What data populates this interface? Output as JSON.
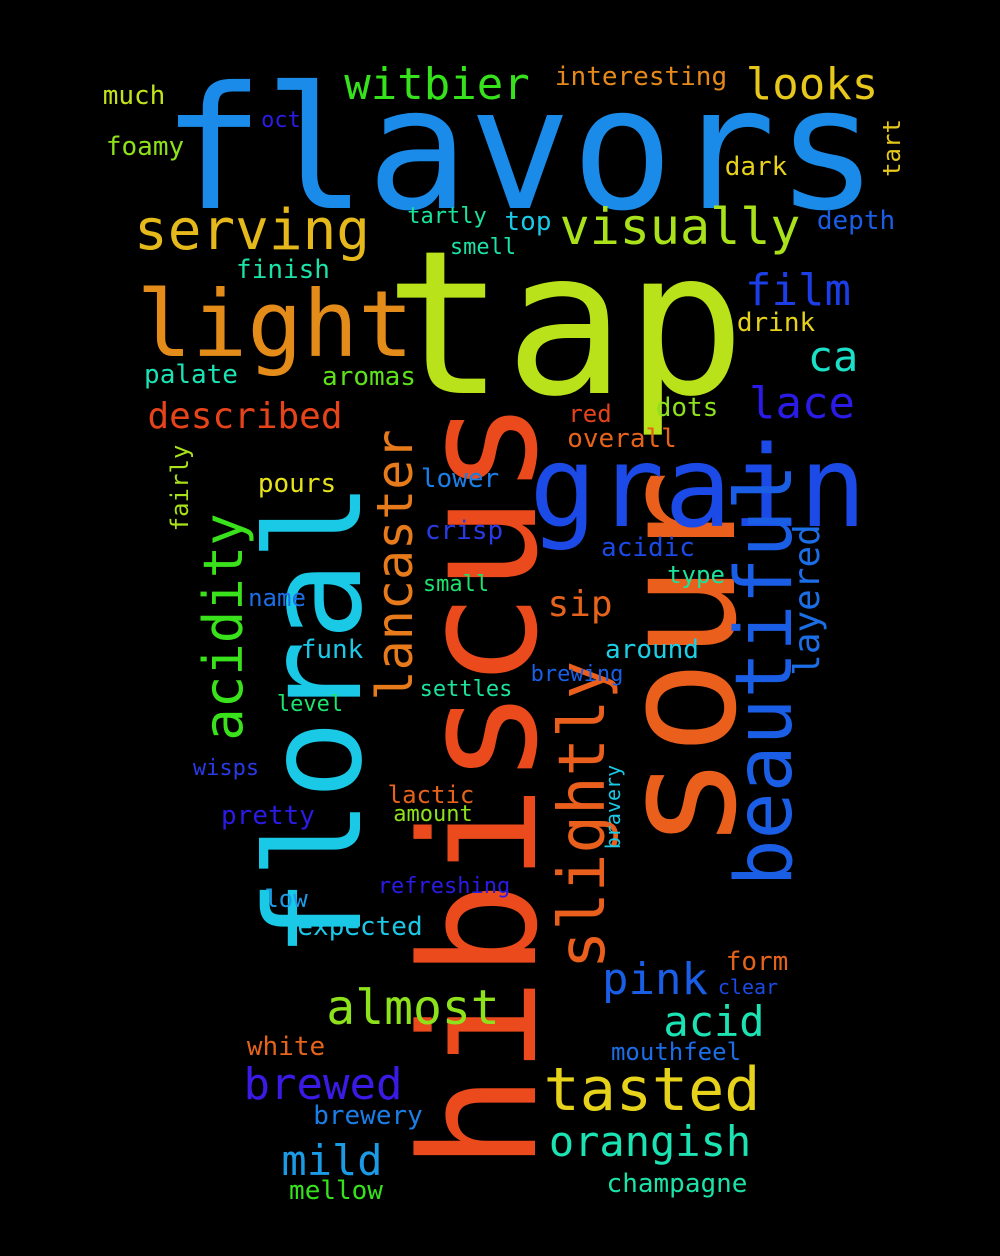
{
  "background": "#000000",
  "words": [
    {
      "id": "flavors",
      "text": "flavors",
      "color": "#1a8be8"
    },
    {
      "id": "tap",
      "text": "tap",
      "color": "#b9e21a"
    },
    {
      "id": "hibiscus",
      "text": "hibiscus",
      "color": "#ea4a1c"
    },
    {
      "id": "sour",
      "text": "sour",
      "color": "#ea5f1c"
    },
    {
      "id": "floral",
      "text": "floral",
      "color": "#19c9e6"
    },
    {
      "id": "grain",
      "text": "grain",
      "color": "#1b4ae6"
    },
    {
      "id": "light",
      "text": "light",
      "color": "#e48c1a"
    },
    {
      "id": "beautiful",
      "text": "beautiful",
      "color": "#1b5ee6"
    },
    {
      "id": "slightly",
      "text": "slightly",
      "color": "#ea5f1c"
    },
    {
      "id": "serving",
      "text": "serving",
      "color": "#e5b91b"
    },
    {
      "id": "acidity",
      "text": "acidity",
      "color": "#3ae21b"
    },
    {
      "id": "lancaster",
      "text": "lancaster",
      "color": "#e77a1b"
    },
    {
      "id": "visually",
      "text": "visually",
      "color": "#a9e21b"
    },
    {
      "id": "witbier",
      "text": "witbier",
      "color": "#36e21b"
    },
    {
      "id": "looks",
      "text": "looks",
      "color": "#e6c71b"
    },
    {
      "id": "tasted",
      "text": "tasted",
      "color": "#e6d11b"
    },
    {
      "id": "orangish",
      "text": "orangish",
      "color": "#1be3b3"
    },
    {
      "id": "almost",
      "text": "almost",
      "color": "#8ee21b"
    },
    {
      "id": "brewed",
      "text": "brewed",
      "color": "#3a1be6"
    },
    {
      "id": "pink",
      "text": "pink",
      "color": "#1b5ee6"
    },
    {
      "id": "layered",
      "text": "layered",
      "color": "#1b6ee6"
    },
    {
      "id": "film",
      "text": "film",
      "color": "#1b3ee6"
    },
    {
      "id": "lace",
      "text": "lace",
      "color": "#2a1be6"
    },
    {
      "id": "described",
      "text": "described",
      "color": "#e6431b"
    },
    {
      "id": "acid",
      "text": "acid",
      "color": "#1be3b3"
    },
    {
      "id": "mild",
      "text": "mild",
      "color": "#1b9be6"
    },
    {
      "id": "ca",
      "text": "ca",
      "color": "#1be0c8"
    },
    {
      "id": "sip",
      "text": "sip",
      "color": "#e6631b"
    },
    {
      "id": "interesting",
      "text": "interesting",
      "color": "#e6891b"
    },
    {
      "id": "much",
      "text": "much",
      "color": "#c4e21b"
    },
    {
      "id": "foamy",
      "text": "foamy",
      "color": "#8ee21b"
    },
    {
      "id": "oct",
      "text": "oct",
      "color": "#2a1be6"
    },
    {
      "id": "tart",
      "text": "tart",
      "color": "#e6c71b"
    },
    {
      "id": "dark",
      "text": "dark",
      "color": "#e6d11b"
    },
    {
      "id": "depth",
      "text": "depth",
      "color": "#1b5ee6"
    },
    {
      "id": "tartly",
      "text": "tartly",
      "color": "#1be39b"
    },
    {
      "id": "top",
      "text": "top",
      "color": "#1bc8e6"
    },
    {
      "id": "smell",
      "text": "smell",
      "color": "#1be3a8"
    },
    {
      "id": "finish",
      "text": "finish",
      "color": "#1be3a8"
    },
    {
      "id": "drink",
      "text": "drink",
      "color": "#e6d11b"
    },
    {
      "id": "palate",
      "text": "palate",
      "color": "#1be3b3"
    },
    {
      "id": "aromas",
      "text": "aromas",
      "color": "#5ee21b"
    },
    {
      "id": "red",
      "text": "red",
      "color": "#e6431b"
    },
    {
      "id": "dots",
      "text": "dots",
      "color": "#8ee21b"
    },
    {
      "id": "overall",
      "text": "overall",
      "color": "#e6631b"
    },
    {
      "id": "fairly",
      "text": "fairly",
      "color": "#a9e21b"
    },
    {
      "id": "pours",
      "text": "pours",
      "color": "#e6e31b"
    },
    {
      "id": "lower",
      "text": "lower",
      "color": "#1b7ee6"
    },
    {
      "id": "crisp",
      "text": "crisp",
      "color": "#2a3ae6"
    },
    {
      "id": "acidic",
      "text": "acidic",
      "color": "#1b4ae6"
    },
    {
      "id": "name",
      "text": "name",
      "color": "#1b6ee6"
    },
    {
      "id": "small",
      "text": "small",
      "color": "#1be36e"
    },
    {
      "id": "type",
      "text": "type",
      "color": "#1be39b"
    },
    {
      "id": "funk",
      "text": "funk",
      "color": "#1bc8e6"
    },
    {
      "id": "around",
      "text": "around",
      "color": "#1bd0e6"
    },
    {
      "id": "brewing",
      "text": "brewing",
      "color": "#1b5ee6"
    },
    {
      "id": "level",
      "text": "level",
      "color": "#1be36e"
    },
    {
      "id": "settles",
      "text": "settles",
      "color": "#1be39b"
    },
    {
      "id": "wisps",
      "text": "wisps",
      "color": "#2a3ae6"
    },
    {
      "id": "bravery",
      "text": "bravery",
      "color": "#1bc8e6"
    },
    {
      "id": "lactic",
      "text": "lactic",
      "color": "#e6631b"
    },
    {
      "id": "pretty",
      "text": "pretty",
      "color": "#2a1be6"
    },
    {
      "id": "amount",
      "text": "amount",
      "color": "#8ee21b"
    },
    {
      "id": "low",
      "text": "low",
      "color": "#1b9be6"
    },
    {
      "id": "refreshing",
      "text": "refreshing",
      "color": "#2a1be6"
    },
    {
      "id": "expected",
      "text": "expected",
      "color": "#1bc8e6"
    },
    {
      "id": "form",
      "text": "form",
      "color": "#e6631b"
    },
    {
      "id": "clear",
      "text": "clear",
      "color": "#1b4ae6"
    },
    {
      "id": "white",
      "text": "white",
      "color": "#e6631b"
    },
    {
      "id": "mouthfeel",
      "text": "mouthfeel",
      "color": "#1b6ee6"
    },
    {
      "id": "brewery",
      "text": "brewery",
      "color": "#1b7ee6"
    },
    {
      "id": "champagne",
      "text": "champagne",
      "color": "#1be3a8"
    },
    {
      "id": "mellow",
      "text": "mellow",
      "color": "#36e21b"
    }
  ]
}
